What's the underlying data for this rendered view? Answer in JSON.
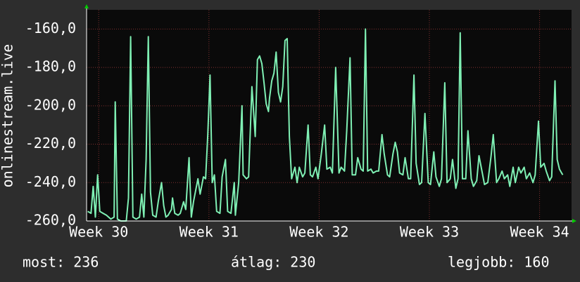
{
  "chart_data": {
    "type": "line",
    "ylabel": "onlinestream.live",
    "xlim": [
      29.89,
      34.29
    ],
    "xticks": [
      {
        "value": 30,
        "label": "Week 30"
      },
      {
        "value": 31,
        "label": "Week 31"
      },
      {
        "value": 32,
        "label": "Week 32"
      },
      {
        "value": 33,
        "label": "Week 33"
      },
      {
        "value": 34,
        "label": "Week 34"
      }
    ],
    "ylim": [
      -260,
      -150
    ],
    "yticks": [
      {
        "value": -260,
        "label": "-260,0"
      },
      {
        "value": -240,
        "label": "-240,0"
      },
      {
        "value": -220,
        "label": "-220,0"
      },
      {
        "value": -200,
        "label": "-200,0"
      },
      {
        "value": -180,
        "label": "-180,0"
      },
      {
        "value": -160,
        "label": "-160,0"
      }
    ],
    "grid": true,
    "annotations": [
      "most: 236",
      "átlag: 230",
      "legjobb: 160"
    ],
    "x": [
      29.9,
      29.93,
      29.95,
      29.97,
      29.99,
      30.01,
      30.04,
      30.07,
      30.11,
      30.14,
      30.15,
      30.17,
      30.2,
      30.25,
      30.27,
      30.29,
      30.31,
      30.34,
      30.37,
      30.39,
      30.41,
      30.43,
      30.45,
      30.47,
      30.49,
      30.52,
      30.54,
      30.57,
      30.59,
      30.61,
      30.63,
      30.66,
      30.67,
      30.69,
      30.72,
      30.74,
      30.77,
      30.79,
      30.82,
      30.84,
      30.86,
      30.9,
      30.92,
      30.95,
      30.97,
      30.99,
      31.01,
      31.03,
      31.05,
      31.07,
      31.1,
      31.12,
      31.15,
      31.17,
      31.2,
      31.23,
      31.24,
      31.27,
      31.3,
      31.31,
      31.34,
      31.36,
      31.39,
      31.42,
      31.44,
      31.46,
      31.48,
      31.5,
      31.52,
      31.54,
      31.55,
      31.57,
      31.59,
      31.61,
      31.63,
      31.65,
      31.67,
      31.69,
      31.71,
      31.73,
      31.75,
      31.78,
      31.8,
      31.82,
      31.85,
      31.87,
      31.9,
      31.92,
      31.94,
      31.97,
      31.99,
      32.02,
      32.05,
      32.07,
      32.1,
      32.12,
      32.15,
      32.18,
      32.2,
      32.23,
      32.25,
      32.28,
      32.3,
      32.33,
      32.35,
      32.38,
      32.4,
      32.42,
      32.44,
      32.47,
      32.49,
      32.52,
      32.54,
      32.57,
      32.59,
      32.62,
      32.64,
      32.67,
      32.69,
      32.71,
      32.73,
      32.76,
      32.78,
      32.81,
      32.83,
      32.86,
      32.88,
      32.91,
      32.93,
      32.96,
      32.99,
      33.01,
      33.04,
      33.06,
      33.09,
      33.11,
      33.14,
      33.16,
      33.19,
      33.21,
      33.24,
      33.26,
      33.28,
      33.3,
      33.33,
      33.35,
      33.38,
      33.4,
      33.43,
      33.45,
      33.48,
      33.5,
      33.53,
      33.56,
      33.58,
      33.61,
      33.63,
      33.66,
      33.68,
      33.71,
      33.73,
      33.76,
      33.78,
      33.81,
      33.83,
      33.86,
      33.88,
      33.91,
      33.94,
      33.96,
      33.99,
      34.01,
      34.04,
      34.06,
      34.09,
      34.11,
      34.14,
      34.16,
      34.18,
      34.2,
      34.21
    ],
    "series": [
      {
        "color": "#7ff0b4",
        "values": [
          -255,
          -256,
          -242,
          -258,
          -236,
          -255,
          -256,
          -257,
          -259,
          -258,
          -198,
          -259,
          -260,
          -260,
          -248,
          -164,
          -258,
          -259,
          -258,
          -246,
          -258,
          -228,
          -164,
          -245,
          -257,
          -258,
          -250,
          -240,
          -252,
          -258,
          -257,
          -254,
          -248,
          -256,
          -257,
          -256,
          -250,
          -254,
          -227,
          -258,
          -250,
          -238,
          -246,
          -237,
          -238,
          -215,
          -184,
          -240,
          -236,
          -255,
          -256,
          -237,
          -228,
          -255,
          -256,
          -240,
          -257,
          -240,
          -200,
          -236,
          -238,
          -237,
          -190,
          -216,
          -176,
          -174,
          -178,
          -188,
          -199,
          -203,
          -196,
          -187,
          -183,
          -172,
          -193,
          -198,
          -190,
          -166,
          -165,
          -216,
          -238,
          -232,
          -240,
          -232,
          -237,
          -235,
          -210,
          -236,
          -237,
          -232,
          -238,
          -225,
          -210,
          -233,
          -232,
          -235,
          -180,
          -235,
          -232,
          -234,
          -213,
          -175,
          -236,
          -236,
          -227,
          -233,
          -234,
          -160,
          -234,
          -233,
          -235,
          -234,
          -234,
          -215,
          -225,
          -236,
          -237,
          -225,
          -219,
          -224,
          -235,
          -236,
          -227,
          -238,
          -238,
          -184,
          -230,
          -241,
          -240,
          -204,
          -240,
          -241,
          -224,
          -237,
          -242,
          -238,
          -188,
          -240,
          -238,
          -228,
          -243,
          -238,
          -162,
          -238,
          -238,
          -213,
          -238,
          -242,
          -239,
          -226,
          -235,
          -241,
          -240,
          -226,
          -215,
          -240,
          -238,
          -234,
          -238,
          -236,
          -242,
          -232,
          -240,
          -232,
          -235,
          -232,
          -238,
          -235,
          -240,
          -236,
          -208,
          -232,
          -230,
          -234,
          -239,
          -237,
          -187,
          -228,
          -233,
          -235,
          -236
        ]
      }
    ]
  }
}
